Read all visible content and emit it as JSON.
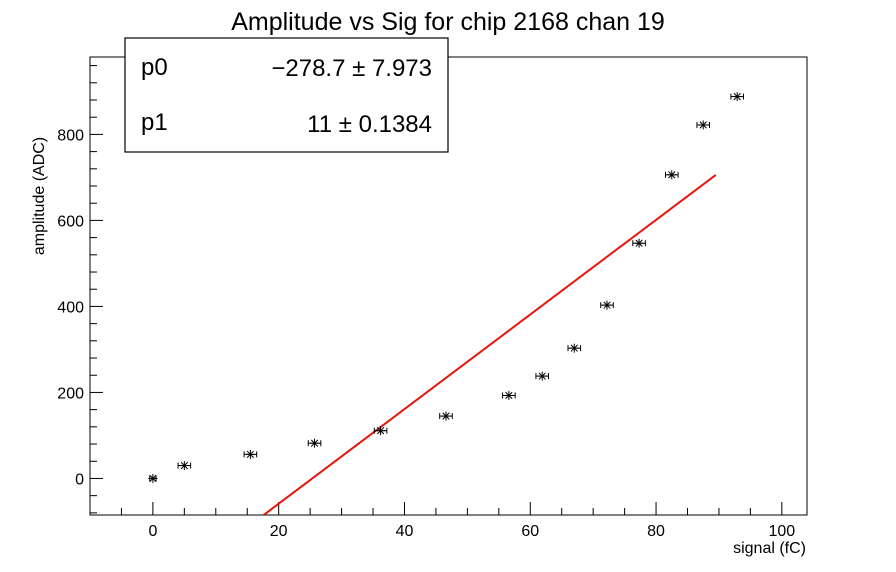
{
  "chart_data": {
    "type": "scatter",
    "title": "Amplitude vs Sig for chip 2168 chan 19",
    "xlabel": "signal (fC)",
    "ylabel": "amplitude (ADC)",
    "xlim": [
      -10,
      104
    ],
    "ylim": [
      -85,
      980
    ],
    "xticks": [
      0,
      20,
      40,
      60,
      80,
      100
    ],
    "yticks": [
      0,
      200,
      400,
      600,
      800
    ],
    "grid": false,
    "series": [
      {
        "type": "scatter",
        "color": "#000000",
        "x": [
          0,
          5,
          15.5,
          25.7,
          36.2,
          46.6,
          56.6,
          61.9,
          67,
          72.2,
          77.3,
          82.5,
          87.5,
          92.9
        ],
        "y": [
          0,
          30,
          56,
          82,
          111,
          145,
          193,
          238,
          303,
          403,
          547,
          706,
          822,
          888
        ],
        "xerr": [
          0.5,
          1.0,
          1.0,
          1.0,
          1.0,
          1.0,
          1.0,
          1.0,
          1.0,
          1.0,
          1.0,
          1.0,
          1.0,
          1.0
        ]
      },
      {
        "type": "line",
        "color": "#e8140c",
        "x": [
          17.5,
          89.5
        ],
        "fit": {
          "p0": -278.7,
          "p1": 11.0
        }
      }
    ],
    "stats_box": {
      "position": "top-left",
      "rows": [
        {
          "name": "p0",
          "value": "−278.7 ± 7.973"
        },
        {
          "name": "p1",
          "value": "11 ± 0.1384"
        }
      ]
    }
  }
}
